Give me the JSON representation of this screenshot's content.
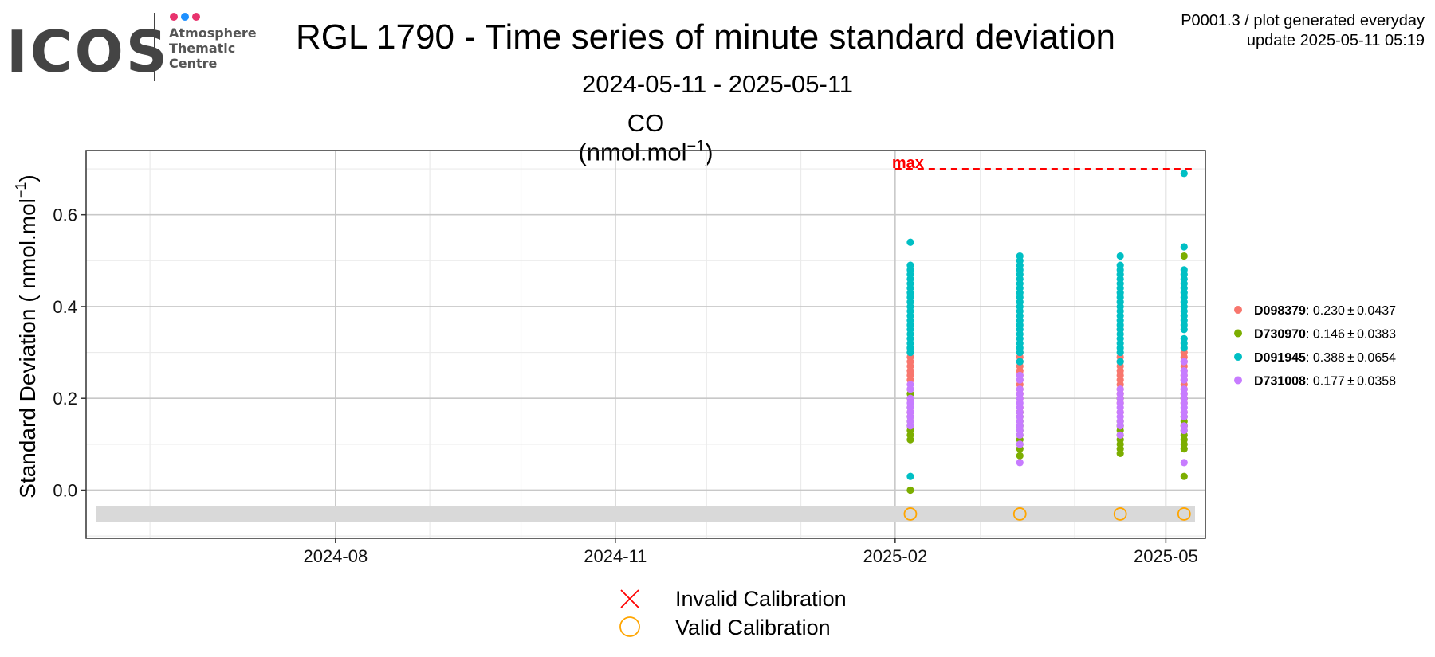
{
  "header": {
    "logo_text": "ICOS",
    "logo_lines": [
      "Atmosphere",
      "Thematic",
      "Centre"
    ],
    "title": "RGL 1790 - Time series of minute standard deviation",
    "subtitle": "2024-05-11 - 2025-05-11",
    "plot_title_main": "CO (nmol.mol",
    "plot_title_sup": "−1",
    "plot_title_end": ")",
    "meta_line1": "P0001.3 / plot generated everyday",
    "meta_line2": "update  2025-05-11 05:19"
  },
  "colors": {
    "D098379": "#F8766D",
    "D730970": "#7CAE00",
    "D091945": "#00BFC4",
    "D731008": "#C77CFF",
    "max_line": "#ff0000",
    "valid": "#FFA500",
    "invalid": "#ff0000",
    "logo_dots": [
      "#e8336d",
      "#1e90ff",
      "#e8336d"
    ]
  },
  "chart_data": {
    "type": "scatter",
    "title": "CO (nmol.mol−1)",
    "xlabel": "",
    "ylabel": "Standard Deviation ( nmol.mol−1)",
    "xlim": [
      "2024-05-11",
      "2025-05-14"
    ],
    "ylim": [
      -0.105,
      0.74
    ],
    "x_ticks": [
      "2024-08",
      "2024-11",
      "2025-02",
      "2025-05"
    ],
    "y_ticks": [
      "0.0",
      "0.2",
      "0.4",
      "0.6"
    ],
    "grid": true,
    "max_label": "max",
    "max_value": 0.7,
    "max_line_from": "2025-02-01",
    "calibration_dates": [
      "2025-02-06",
      "2025-03-14",
      "2025-04-16",
      "2025-05-07"
    ],
    "calibration_band": [
      -0.07,
      -0.035
    ],
    "calibration_marker_y": -0.052,
    "series": [
      {
        "name": "D098379",
        "label": "D098379",
        "stats": ": 0.230 ± 0.0437",
        "points": [
          {
            "x": "2025-02-06",
            "y": [
              0.17,
              0.2,
              0.22,
              0.24,
              0.25,
              0.26,
              0.27,
              0.28,
              0.29,
              0.3,
              0.31
            ]
          },
          {
            "x": "2025-03-14",
            "y": [
              0.17,
              0.18,
              0.2,
              0.21,
              0.22,
              0.23,
              0.24,
              0.25,
              0.26,
              0.27,
              0.28,
              0.29,
              0.3
            ]
          },
          {
            "x": "2025-04-16",
            "y": [
              0.17,
              0.19,
              0.2,
              0.21,
              0.22,
              0.23,
              0.24,
              0.25,
              0.26,
              0.27,
              0.28,
              0.29,
              0.35
            ]
          },
          {
            "x": "2025-05-07",
            "y": [
              0.14,
              0.17,
              0.19,
              0.2,
              0.21,
              0.22,
              0.23,
              0.24,
              0.25,
              0.26,
              0.27,
              0.28,
              0.29,
              0.3
            ]
          }
        ]
      },
      {
        "name": "D730970",
        "label": "D730970",
        "stats": ": 0.146 ± 0.0383",
        "points": [
          {
            "x": "2025-02-06",
            "y": [
              0.0,
              0.11,
              0.12,
              0.13,
              0.14,
              0.15,
              0.16,
              0.18,
              0.2,
              0.21
            ]
          },
          {
            "x": "2025-03-14",
            "y": [
              0.075,
              0.09,
              0.1,
              0.11,
              0.12,
              0.13,
              0.14,
              0.15,
              0.16,
              0.17
            ]
          },
          {
            "x": "2025-04-16",
            "y": [
              0.08,
              0.09,
              0.1,
              0.11,
              0.12,
              0.13,
              0.14,
              0.15,
              0.2
            ]
          },
          {
            "x": "2025-05-07",
            "y": [
              0.03,
              0.09,
              0.1,
              0.11,
              0.12,
              0.13,
              0.14,
              0.15,
              0.16,
              0.2,
              0.51
            ]
          }
        ]
      },
      {
        "name": "D091945",
        "label": "D091945",
        "stats": ": 0.388 ± 0.0654",
        "points": [
          {
            "x": "2025-02-06",
            "y": [
              0.03,
              0.3,
              0.31,
              0.32,
              0.33,
              0.34,
              0.35,
              0.36,
              0.37,
              0.38,
              0.39,
              0.4,
              0.41,
              0.42,
              0.43,
              0.44,
              0.45,
              0.46,
              0.47,
              0.48,
              0.49,
              0.54
            ]
          },
          {
            "x": "2025-03-14",
            "y": [
              0.28,
              0.3,
              0.31,
              0.32,
              0.33,
              0.34,
              0.35,
              0.36,
              0.37,
              0.38,
              0.39,
              0.4,
              0.41,
              0.42,
              0.43,
              0.44,
              0.45,
              0.46,
              0.47,
              0.48,
              0.49,
              0.5,
              0.51
            ]
          },
          {
            "x": "2025-04-16",
            "y": [
              0.28,
              0.3,
              0.31,
              0.32,
              0.33,
              0.34,
              0.35,
              0.36,
              0.37,
              0.38,
              0.39,
              0.4,
              0.41,
              0.42,
              0.43,
              0.44,
              0.45,
              0.46,
              0.47,
              0.48,
              0.49,
              0.51
            ]
          },
          {
            "x": "2025-05-07",
            "y": [
              0.31,
              0.32,
              0.33,
              0.35,
              0.36,
              0.37,
              0.38,
              0.39,
              0.4,
              0.41,
              0.42,
              0.43,
              0.44,
              0.45,
              0.46,
              0.47,
              0.48,
              0.53,
              0.69
            ]
          }
        ]
      },
      {
        "name": "D731008",
        "label": "D731008",
        "stats": ": 0.177 ± 0.0358",
        "points": [
          {
            "x": "2025-02-06",
            "y": [
              0.14,
              0.15,
              0.16,
              0.17,
              0.18,
              0.19,
              0.2,
              0.22,
              0.23
            ]
          },
          {
            "x": "2025-03-14",
            "y": [
              0.06,
              0.1,
              0.12,
              0.13,
              0.14,
              0.15,
              0.16,
              0.17,
              0.18,
              0.19,
              0.2,
              0.21,
              0.22,
              0.24,
              0.25
            ]
          },
          {
            "x": "2025-04-16",
            "y": [
              0.12,
              0.14,
              0.15,
              0.16,
              0.17,
              0.18,
              0.19,
              0.2,
              0.21,
              0.22
            ]
          },
          {
            "x": "2025-05-07",
            "y": [
              0.06,
              0.13,
              0.14,
              0.16,
              0.17,
              0.18,
              0.19,
              0.2,
              0.21,
              0.22,
              0.24,
              0.25,
              0.26,
              0.28
            ]
          }
        ]
      }
    ]
  },
  "legend": {
    "invalid_label": "Invalid Calibration",
    "valid_label": "Valid Calibration"
  }
}
